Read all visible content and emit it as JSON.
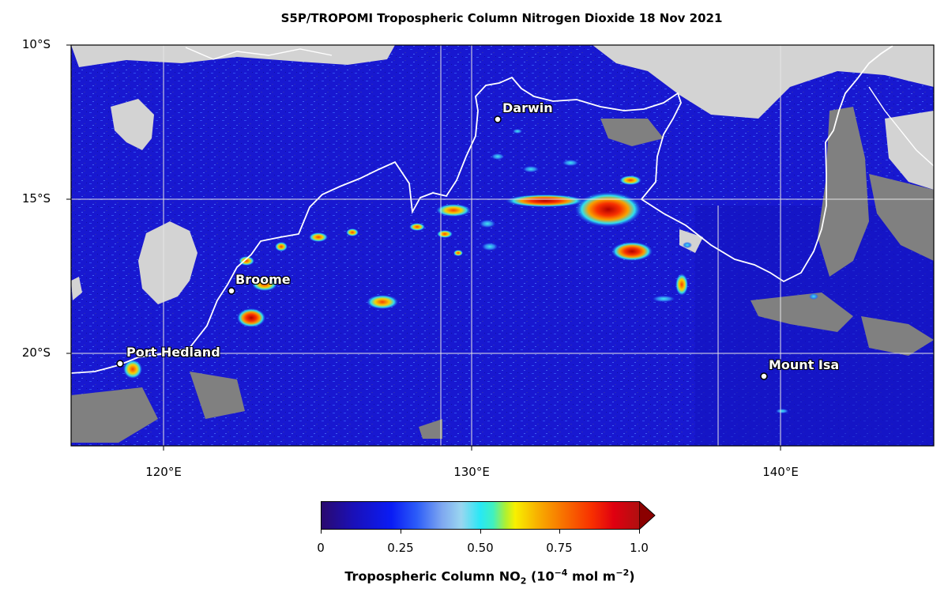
{
  "title": "S5P/TROPOMI Tropospheric Column Nitrogen Dioxide  18 Nov 2021",
  "y_ticks": [
    "10°S",
    "15°S",
    "20°S"
  ],
  "x_ticks": [
    "120°E",
    "130°E",
    "140°E"
  ],
  "cities": [
    {
      "name": "Darwin"
    },
    {
      "name": "Broome"
    },
    {
      "name": "Port Hedland"
    },
    {
      "name": "Mount Isa"
    }
  ],
  "colorbar": {
    "ticks": [
      "0",
      "0.25",
      "0.50",
      "0.75",
      "1.0"
    ],
    "label_main": "Tropospheric Column NO",
    "label_sub": "2",
    "label_units_pre": " (10",
    "label_exp1": "−4",
    "label_units_mid": " mol m",
    "label_exp2": "−2",
    "label_units_post": ")"
  },
  "colors": {
    "background_field": "#1a1ad8",
    "land_no_data": "#d3d3d3",
    "missing": "#808080",
    "coastline": "#ffffff"
  }
}
